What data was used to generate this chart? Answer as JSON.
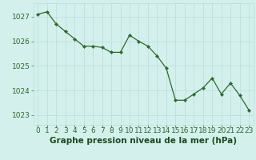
{
  "x": [
    0,
    1,
    2,
    3,
    4,
    5,
    6,
    7,
    8,
    9,
    10,
    11,
    12,
    13,
    14,
    15,
    16,
    17,
    18,
    19,
    20,
    21,
    22,
    23
  ],
  "y": [
    1027.1,
    1027.2,
    1026.7,
    1026.4,
    1026.1,
    1025.8,
    1025.8,
    1025.75,
    1025.55,
    1025.55,
    1026.25,
    1026.0,
    1025.8,
    1025.4,
    1024.9,
    1023.6,
    1023.6,
    1023.85,
    1024.1,
    1024.5,
    1023.85,
    1024.3,
    1023.8,
    1023.2
  ],
  "ylim": [
    1022.6,
    1027.55
  ],
  "yticks": [
    1023,
    1024,
    1025,
    1026,
    1027
  ],
  "xticks": [
    0,
    1,
    2,
    3,
    4,
    5,
    6,
    7,
    8,
    9,
    10,
    11,
    12,
    13,
    14,
    15,
    16,
    17,
    18,
    19,
    20,
    21,
    22,
    23
  ],
  "xlabel": "Graphe pression niveau de la mer (hPa)",
  "line_color": "#2d6a2d",
  "marker_color": "#2d6a2d",
  "bg_plot": "#d4f0ec",
  "bg_fig": "#d4f0ec",
  "grid_color": "#b8ddd8",
  "tick_label_color": "#2d6a2d",
  "xlabel_color": "#1a4a1a",
  "xlabel_fontsize": 7.5,
  "tick_fontsize": 6.5
}
